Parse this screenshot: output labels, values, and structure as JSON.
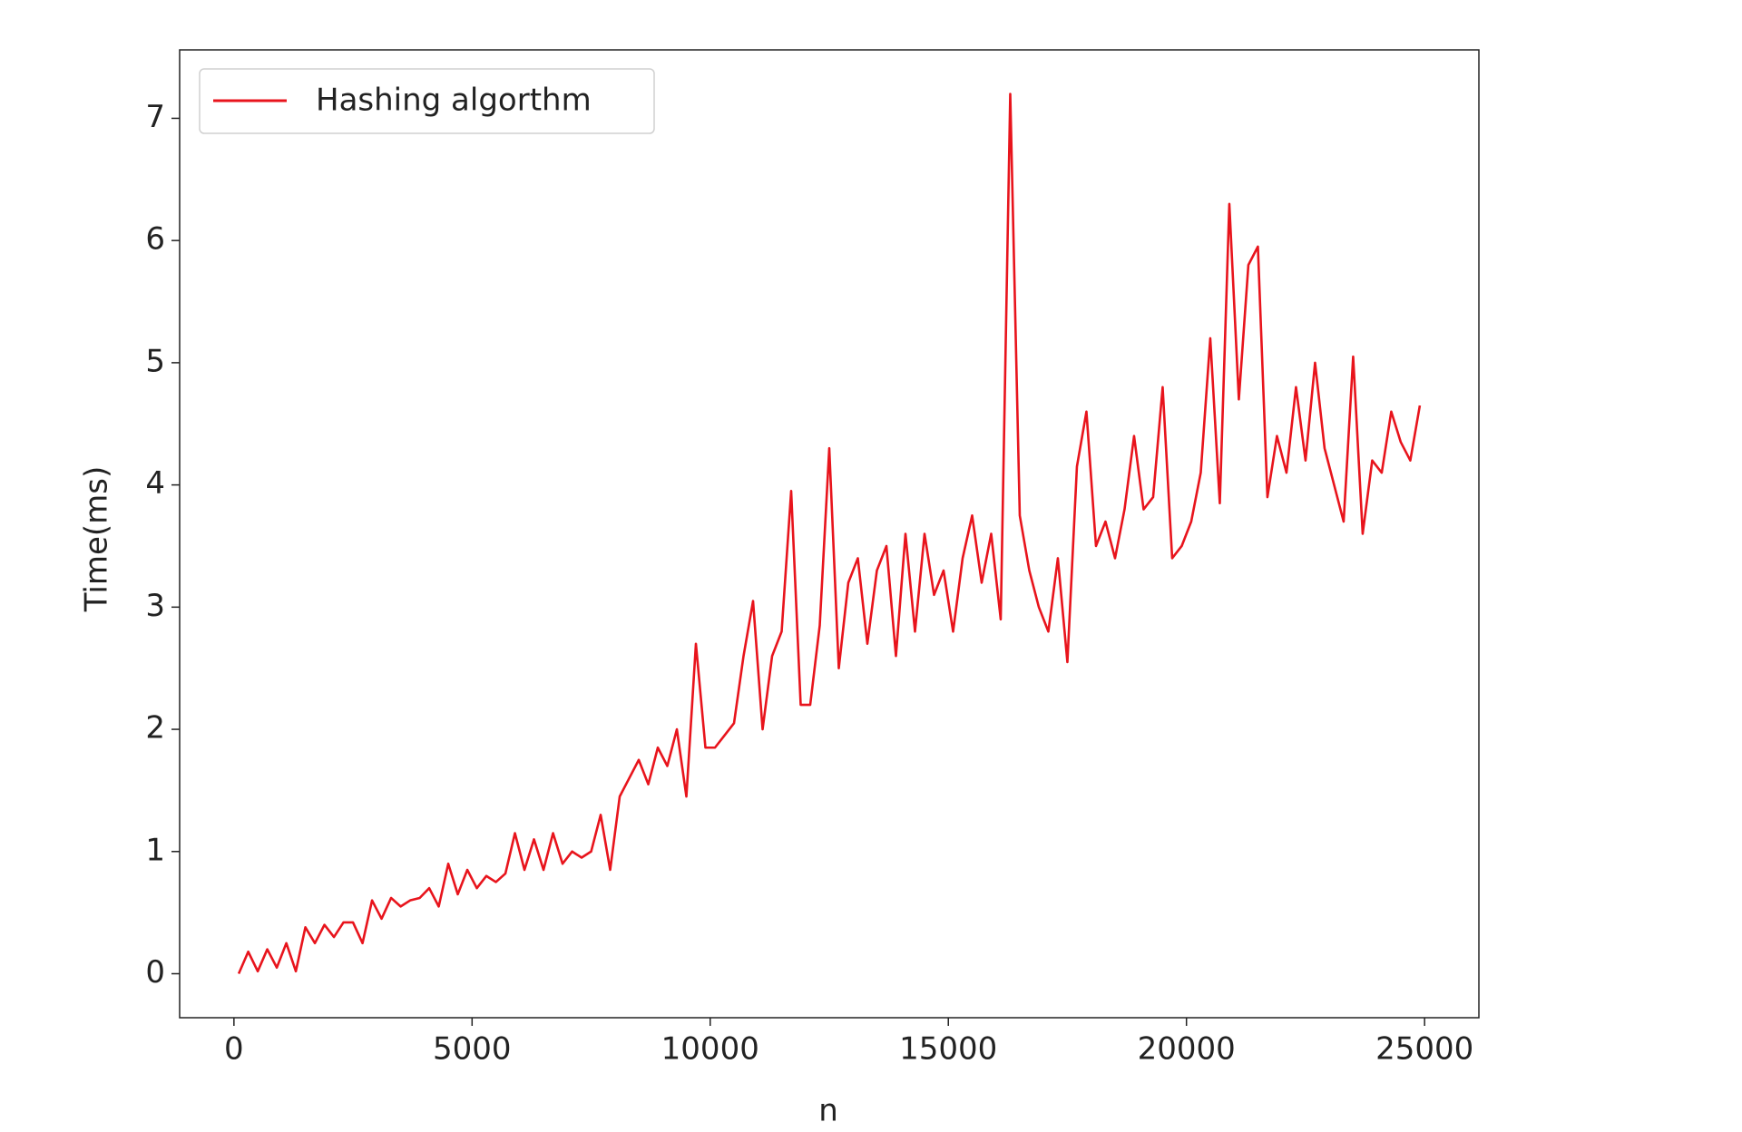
{
  "chart_data": {
    "type": "line",
    "xlabel": "n",
    "ylabel": "Time(ms)",
    "x": [
      100,
      300,
      500,
      700,
      900,
      1100,
      1300,
      1500,
      1700,
      1900,
      2100,
      2300,
      2500,
      2700,
      2900,
      3100,
      3300,
      3500,
      3700,
      3900,
      4100,
      4300,
      4500,
      4700,
      4900,
      5100,
      5300,
      5500,
      5700,
      5900,
      6100,
      6300,
      6500,
      6700,
      6900,
      7100,
      7300,
      7500,
      7700,
      7900,
      8100,
      8300,
      8500,
      8700,
      8900,
      9100,
      9300,
      9500,
      9700,
      9900,
      10100,
      10300,
      10500,
      10700,
      10900,
      11100,
      11300,
      11500,
      11700,
      11900,
      12100,
      12300,
      12500,
      12700,
      12900,
      13100,
      13300,
      13500,
      13700,
      13900,
      14100,
      14300,
      14500,
      14700,
      14900,
      15100,
      15300,
      15500,
      15700,
      15900,
      16100,
      16300,
      16500,
      16700,
      16900,
      17100,
      17300,
      17500,
      17700,
      17900,
      18100,
      18300,
      18500,
      18700,
      18900,
      19100,
      19300,
      19500,
      19700,
      19900,
      20100,
      20300,
      20500,
      20700,
      20900,
      21100,
      21300,
      21500,
      21700,
      21900,
      22100,
      22300,
      22500,
      22700,
      22900,
      23100,
      23300,
      23500,
      23700,
      23900,
      24100,
      24300,
      24500,
      24700,
      24900
    ],
    "series": [
      {
        "name": "Hashing algorthm",
        "color": "#e8141c",
        "values": [
          0,
          0.18,
          0.02,
          0.2,
          0.05,
          0.25,
          0.02,
          0.38,
          0.25,
          0.4,
          0.3,
          0.42,
          0.42,
          0.25,
          0.6,
          0.45,
          0.62,
          0.55,
          0.6,
          0.62,
          0.7,
          0.55,
          0.9,
          0.65,
          0.85,
          0.7,
          0.8,
          0.75,
          0.82,
          1.15,
          0.85,
          1.1,
          0.85,
          1.15,
          0.9,
          1.0,
          0.95,
          1.0,
          1.3,
          0.85,
          1.45,
          1.6,
          1.75,
          1.55,
          1.85,
          1.7,
          2.0,
          1.45,
          2.7,
          1.85,
          1.85,
          1.95,
          2.05,
          2.6,
          3.05,
          2.0,
          2.6,
          2.8,
          3.95,
          2.2,
          2.2,
          2.85,
          4.3,
          2.5,
          3.2,
          3.4,
          2.7,
          3.3,
          3.5,
          2.6,
          3.6,
          2.8,
          3.6,
          3.1,
          3.3,
          2.8,
          3.4,
          3.75,
          3.2,
          3.6,
          2.9,
          7.2,
          3.75,
          3.3,
          3.0,
          2.8,
          3.4,
          2.55,
          4.15,
          4.6,
          3.5,
          3.7,
          3.4,
          3.8,
          4.4,
          3.8,
          3.9,
          4.8,
          3.4,
          3.5,
          3.7,
          4.1,
          5.2,
          3.85,
          6.3,
          4.7,
          5.8,
          5.95,
          3.9,
          4.4,
          4.1,
          4.8,
          4.2,
          5.0,
          4.3,
          4.0,
          3.7,
          5.05,
          3.6,
          4.2,
          4.1,
          4.6,
          4.35,
          4.2,
          4.65
        ]
      }
    ],
    "xlim": [
      -1140,
      26140
    ],
    "ylim": [
      -0.36,
      7.56
    ],
    "xticks": [
      0,
      5000,
      10000,
      15000,
      20000,
      25000
    ],
    "yticks": [
      0,
      1,
      2,
      3,
      4,
      5,
      6,
      7
    ],
    "legend": "upper left"
  }
}
